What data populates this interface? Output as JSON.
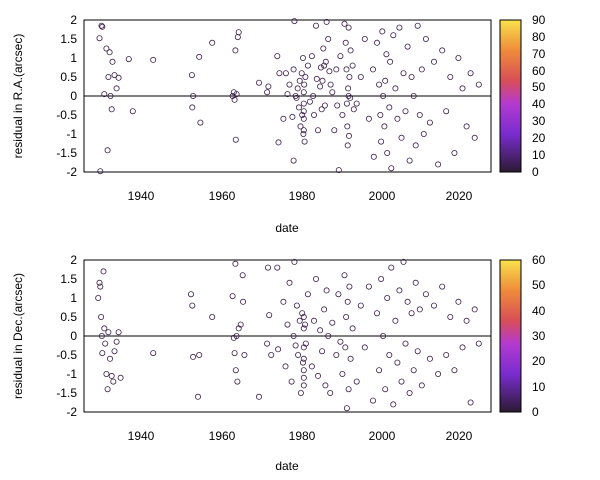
{
  "chart_data": [
    {
      "type": "scatter",
      "title": "",
      "xlabel": "date",
      "ylabel": "residual in R.A.(arcsec)",
      "xlim": [
        1926,
        2026
      ],
      "ylim": [
        -2,
        2
      ],
      "xticks": [
        1940,
        1960,
        1980,
        2000,
        2020
      ],
      "yticks": [
        2,
        1.5,
        1,
        0.5,
        0,
        -0.5,
        -1,
        -1.5,
        -2
      ],
      "ytick_labels": [
        "2",
        "1.5",
        "1",
        "0.5",
        "0",
        "-0.5",
        "-1",
        "-1.5",
        "-2"
      ],
      "zero_line": true,
      "grid": false,
      "marker": "open-circle",
      "marker_color": "#3c1f4a",
      "colorbar": {
        "min": 0,
        "max": 90,
        "ticks": [
          0,
          10,
          20,
          30,
          40,
          50,
          60,
          70,
          80,
          90
        ]
      },
      "points": [
        [
          1929.8,
          1.52
        ],
        [
          1930.0,
          -1.98
        ],
        [
          1930.3,
          1.85
        ],
        [
          1930.5,
          1.82
        ],
        [
          1931.0,
          0.05
        ],
        [
          1931.5,
          1.25
        ],
        [
          1931.8,
          -1.43
        ],
        [
          1932.0,
          0.5
        ],
        [
          1932.3,
          1.15
        ],
        [
          1932.5,
          0.0
        ],
        [
          1932.8,
          -0.35
        ],
        [
          1933.0,
          0.9
        ],
        [
          1933.5,
          0.55
        ],
        [
          1934.0,
          0.2
        ],
        [
          1934.5,
          0.48
        ],
        [
          1937.0,
          0.97
        ],
        [
          1938.0,
          -0.4
        ],
        [
          1943.0,
          0.95
        ],
        [
          1952.5,
          0.55
        ],
        [
          1952.8,
          0.0
        ],
        [
          1952.6,
          -0.3
        ],
        [
          1954.3,
          1.03
        ],
        [
          1954.6,
          -0.7
        ],
        [
          1957.5,
          1.4
        ],
        [
          1962.5,
          0.0
        ],
        [
          1962.8,
          0.1
        ],
        [
          1963.0,
          -0.1
        ],
        [
          1963.2,
          1.2
        ],
        [
          1963.3,
          -1.15
        ],
        [
          1963.5,
          0.05
        ],
        [
          1963.8,
          1.55
        ],
        [
          1964.0,
          1.68
        ],
        [
          1969.0,
          0.35
        ],
        [
          1971.0,
          0.1
        ],
        [
          1971.3,
          0.25
        ],
        [
          1973.5,
          1.05
        ],
        [
          1973.8,
          -1.22
        ],
        [
          1974.0,
          0.6
        ],
        [
          1975.0,
          -0.6
        ],
        [
          1975.6,
          0.6
        ],
        [
          1976.0,
          0.05
        ],
        [
          1976.5,
          0.3
        ],
        [
          1977.2,
          -0.55
        ],
        [
          1977.5,
          0.7
        ],
        [
          1977.5,
          -1.7
        ],
        [
          1977.7,
          1.97
        ],
        [
          1978.0,
          0.0
        ],
        [
          1978.2,
          -0.05
        ],
        [
          1978.5,
          0.2
        ],
        [
          1978.8,
          -0.3
        ],
        [
          1979.0,
          0.4
        ],
        [
          1979.2,
          -0.8
        ],
        [
          1979.5,
          0.6
        ],
        [
          1979.6,
          -0.5
        ],
        [
          1979.8,
          1.0
        ],
        [
          1979.9,
          -1.0
        ],
        [
          1980.0,
          0.1
        ],
        [
          1980.0,
          -0.2
        ],
        [
          1980.0,
          -0.4
        ],
        [
          1980.0,
          -0.6
        ],
        [
          1980.0,
          -0.9
        ],
        [
          1980.1,
          0.3
        ],
        [
          1980.2,
          -1.2
        ],
        [
          1980.4,
          0.5
        ],
        [
          1981.0,
          0.8
        ],
        [
          1981.5,
          -0.15
        ],
        [
          1982.0,
          1.05
        ],
        [
          1982.3,
          0.0
        ],
        [
          1982.5,
          -0.5
        ],
        [
          1983.0,
          1.85
        ],
        [
          1983.2,
          0.45
        ],
        [
          1983.5,
          -0.9
        ],
        [
          1984.0,
          0.25
        ],
        [
          1984.2,
          0.75
        ],
        [
          1984.4,
          -0.35
        ],
        [
          1984.6,
          0.4
        ],
        [
          1984.8,
          1.25
        ],
        [
          1985.0,
          0.8
        ],
        [
          1985.2,
          -0.25
        ],
        [
          1985.4,
          0.9
        ],
        [
          1985.6,
          1.95
        ],
        [
          1986.0,
          1.5
        ],
        [
          1986.3,
          0.65
        ],
        [
          1986.6,
          0.3
        ],
        [
          1987.0,
          0.1
        ],
        [
          1987.5,
          -0.9
        ],
        [
          1988.0,
          0.7
        ],
        [
          1988.2,
          -0.25
        ],
        [
          1988.6,
          -1.95
        ],
        [
          1989.0,
          1.05
        ],
        [
          1989.5,
          -0.5
        ],
        [
          1990.0,
          1.9
        ],
        [
          1990.3,
          1.4
        ],
        [
          1990.5,
          0.7
        ],
        [
          1990.6,
          -0.2
        ],
        [
          1990.7,
          -0.8
        ],
        [
          1990.8,
          -1.3
        ],
        [
          1990.9,
          0.2
        ],
        [
          1991.0,
          1.8
        ],
        [
          1991.0,
          0.0
        ],
        [
          1991.1,
          -1.05
        ],
        [
          1991.2,
          0.5
        ],
        [
          1991.4,
          -0.05
        ],
        [
          1991.5,
          1.2
        ],
        [
          1992.0,
          0.8
        ],
        [
          1992.3,
          -0.35
        ],
        [
          1993.0,
          -0.2
        ],
        [
          1994.0,
          0.5
        ],
        [
          1995.0,
          1.5
        ],
        [
          1996.0,
          -0.6
        ],
        [
          1997.0,
          0.7
        ],
        [
          1997.2,
          -1.6
        ],
        [
          1998.0,
          1.4
        ],
        [
          1998.5,
          0.3
        ],
        [
          1998.8,
          -0.5
        ],
        [
          1999.0,
          -1.2
        ],
        [
          1999.3,
          1.7
        ],
        [
          1999.5,
          0.0
        ],
        [
          1999.8,
          -0.8
        ],
        [
          2000.0,
          0.4
        ],
        [
          2000.3,
          1.1
        ],
        [
          2000.5,
          -1.5
        ],
        [
          2001.0,
          -0.3
        ],
        [
          2001.2,
          0.9
        ],
        [
          2001.5,
          -1.9
        ],
        [
          2002.0,
          1.6
        ],
        [
          2002.5,
          0.2
        ],
        [
          2003.0,
          -0.6
        ],
        [
          2003.5,
          1.8
        ],
        [
          2004.0,
          -1.1
        ],
        [
          2004.5,
          0.6
        ],
        [
          2005.0,
          -0.4
        ],
        [
          2005.5,
          1.3
        ],
        [
          2006.0,
          -1.7
        ],
        [
          2006.5,
          0.5
        ],
        [
          2007.0,
          0.0
        ],
        [
          2007.5,
          -1.3
        ],
        [
          2008.0,
          1.85
        ],
        [
          2008.5,
          -0.5
        ],
        [
          2009.0,
          0.7
        ],
        [
          2009.5,
          -1.0
        ],
        [
          2010.0,
          1.5
        ],
        [
          2011.0,
          -0.7
        ],
        [
          2012.0,
          0.9
        ],
        [
          2013.0,
          -1.8
        ],
        [
          2014.0,
          1.2
        ],
        [
          2015.0,
          -0.4
        ],
        [
          2016.0,
          0.5
        ],
        [
          2017.0,
          -1.5
        ],
        [
          2018.0,
          1.0
        ],
        [
          2019.0,
          0.2
        ],
        [
          2020.0,
          -0.8
        ],
        [
          2021.0,
          0.6
        ],
        [
          2022.0,
          -1.1
        ],
        [
          2023.0,
          0.3
        ]
      ]
    },
    {
      "type": "scatter",
      "title": "",
      "xlabel": "date",
      "ylabel": "residual in Dec.(arcsec)",
      "xlim": [
        1926,
        2026
      ],
      "ylim": [
        -2,
        2
      ],
      "xticks": [
        1940,
        1960,
        1980,
        2000,
        2020
      ],
      "yticks": [
        2,
        1.5,
        1,
        0.5,
        0,
        -0.5,
        -1,
        -1.5,
        -2
      ],
      "ytick_labels": [
        "2",
        "1.5",
        "1",
        "0.5",
        "0",
        "-0.5",
        "-1",
        "-1.5",
        "-2"
      ],
      "zero_line": true,
      "grid": false,
      "marker": "open-circle",
      "marker_color": "#3c1f4a",
      "colorbar": {
        "min": 0,
        "max": 60,
        "ticks": [
          0,
          10,
          20,
          30,
          40,
          50,
          60
        ]
      },
      "points": [
        [
          1929.5,
          1.0
        ],
        [
          1929.8,
          1.4
        ],
        [
          1930.0,
          1.3
        ],
        [
          1930.2,
          0.5
        ],
        [
          1930.4,
          0.0
        ],
        [
          1930.5,
          -0.45
        ],
        [
          1930.8,
          1.7
        ],
        [
          1931.0,
          0.2
        ],
        [
          1931.2,
          -0.2
        ],
        [
          1931.5,
          -1.0
        ],
        [
          1931.8,
          -1.4
        ],
        [
          1932.0,
          0.1
        ],
        [
          1932.4,
          -0.6
        ],
        [
          1932.8,
          -1.05
        ],
        [
          1933.2,
          -1.2
        ],
        [
          1933.5,
          -0.4
        ],
        [
          1934.0,
          -0.15
        ],
        [
          1934.5,
          0.1
        ],
        [
          1935.0,
          -1.1
        ],
        [
          1943.0,
          -0.45
        ],
        [
          1952.3,
          1.1
        ],
        [
          1952.6,
          0.8
        ],
        [
          1952.8,
          -0.55
        ],
        [
          1954.0,
          -1.6
        ],
        [
          1954.3,
          -0.5
        ],
        [
          1957.5,
          0.5
        ],
        [
          1962.5,
          1.05
        ],
        [
          1962.8,
          -0.05
        ],
        [
          1963.0,
          -0.45
        ],
        [
          1963.2,
          1.9
        ],
        [
          1963.3,
          -0.9
        ],
        [
          1963.5,
          0.0
        ],
        [
          1963.7,
          -1.2
        ],
        [
          1964.0,
          0.2
        ],
        [
          1964.5,
          0.3
        ],
        [
          1965.0,
          1.6
        ],
        [
          1965.1,
          0.9
        ],
        [
          1965.4,
          -0.5
        ],
        [
          1969.0,
          -1.6
        ],
        [
          1971.0,
          -0.2
        ],
        [
          1971.2,
          1.8
        ],
        [
          1971.5,
          0.55
        ],
        [
          1972.0,
          -0.5
        ],
        [
          1973.5,
          1.8
        ],
        [
          1973.7,
          -0.35
        ],
        [
          1975.0,
          0.9
        ],
        [
          1975.5,
          -0.8
        ],
        [
          1976.0,
          0.3
        ],
        [
          1976.5,
          1.4
        ],
        [
          1977.0,
          -1.2
        ],
        [
          1977.5,
          0.0
        ],
        [
          1977.7,
          1.95
        ],
        [
          1978.0,
          -0.25
        ],
        [
          1978.3,
          0.8
        ],
        [
          1978.6,
          -0.5
        ],
        [
          1979.0,
          0.4
        ],
        [
          1979.3,
          -1.5
        ],
        [
          1979.6,
          0.6
        ],
        [
          1979.8,
          -0.7
        ],
        [
          1980.0,
          0.2
        ],
        [
          1980.0,
          -0.3
        ],
        [
          1980.0,
          -0.6
        ],
        [
          1980.0,
          -0.9
        ],
        [
          1980.0,
          -1.1
        ],
        [
          1980.0,
          0.5
        ],
        [
          1980.0,
          -1.3
        ],
        [
          1980.3,
          0.3
        ],
        [
          1980.5,
          -0.2
        ],
        [
          1981.0,
          1.1
        ],
        [
          1982.0,
          -0.8
        ],
        [
          1982.5,
          0.4
        ],
        [
          1983.0,
          1.5
        ],
        [
          1983.5,
          -1.05
        ],
        [
          1984.0,
          0.15
        ],
        [
          1984.5,
          -0.4
        ],
        [
          1985.0,
          0.7
        ],
        [
          1985.3,
          -1.3
        ],
        [
          1985.6,
          1.2
        ],
        [
          1986.0,
          0.0
        ],
        [
          1986.5,
          -1.5
        ],
        [
          1987.0,
          0.35
        ],
        [
          1988.0,
          -0.5
        ],
        [
          1988.5,
          1.1
        ],
        [
          1989.0,
          -0.15
        ],
        [
          1989.5,
          -1.0
        ],
        [
          1990.0,
          1.6
        ],
        [
          1990.2,
          -0.3
        ],
        [
          1990.4,
          0.5
        ],
        [
          1990.6,
          -1.9
        ],
        [
          1990.8,
          0.9
        ],
        [
          1991.0,
          -1.4
        ],
        [
          1991.2,
          1.3
        ],
        [
          1991.5,
          -0.6
        ],
        [
          1992.0,
          0.2
        ],
        [
          1993.0,
          -1.2
        ],
        [
          1994.0,
          0.8
        ],
        [
          1995.0,
          -0.3
        ],
        [
          1996.0,
          1.3
        ],
        [
          1997.0,
          -1.7
        ],
        [
          1998.0,
          0.6
        ],
        [
          1998.5,
          -0.9
        ],
        [
          1999.0,
          1.5
        ],
        [
          1999.5,
          0.0
        ],
        [
          2000.0,
          -1.4
        ],
        [
          2000.5,
          1.0
        ],
        [
          2001.0,
          -0.5
        ],
        [
          2001.5,
          1.8
        ],
        [
          2002.0,
          -1.8
        ],
        [
          2002.5,
          0.4
        ],
        [
          2003.0,
          -0.7
        ],
        [
          2003.5,
          1.2
        ],
        [
          2004.0,
          -1.2
        ],
        [
          2004.5,
          1.95
        ],
        [
          2005.0,
          -0.2
        ],
        [
          2005.5,
          0.9
        ],
        [
          2006.0,
          -1.5
        ],
        [
          2006.5,
          0.6
        ],
        [
          2007.0,
          -0.9
        ],
        [
          2007.5,
          1.4
        ],
        [
          2008.0,
          -0.4
        ],
        [
          2008.5,
          0.7
        ],
        [
          2009.0,
          -1.3
        ],
        [
          2010.0,
          1.1
        ],
        [
          2011.0,
          -0.6
        ],
        [
          2012.0,
          0.8
        ],
        [
          2013.0,
          -1.0
        ],
        [
          2014.0,
          1.3
        ],
        [
          2015.0,
          -0.5
        ],
        [
          2016.0,
          0.5
        ],
        [
          2017.0,
          -0.9
        ],
        [
          2018.0,
          0.9
        ],
        [
          2019.0,
          -0.3
        ],
        [
          2020.0,
          0.4
        ],
        [
          2021.0,
          -1.75
        ],
        [
          2022.0,
          0.7
        ],
        [
          2023.0,
          -0.2
        ]
      ]
    }
  ]
}
